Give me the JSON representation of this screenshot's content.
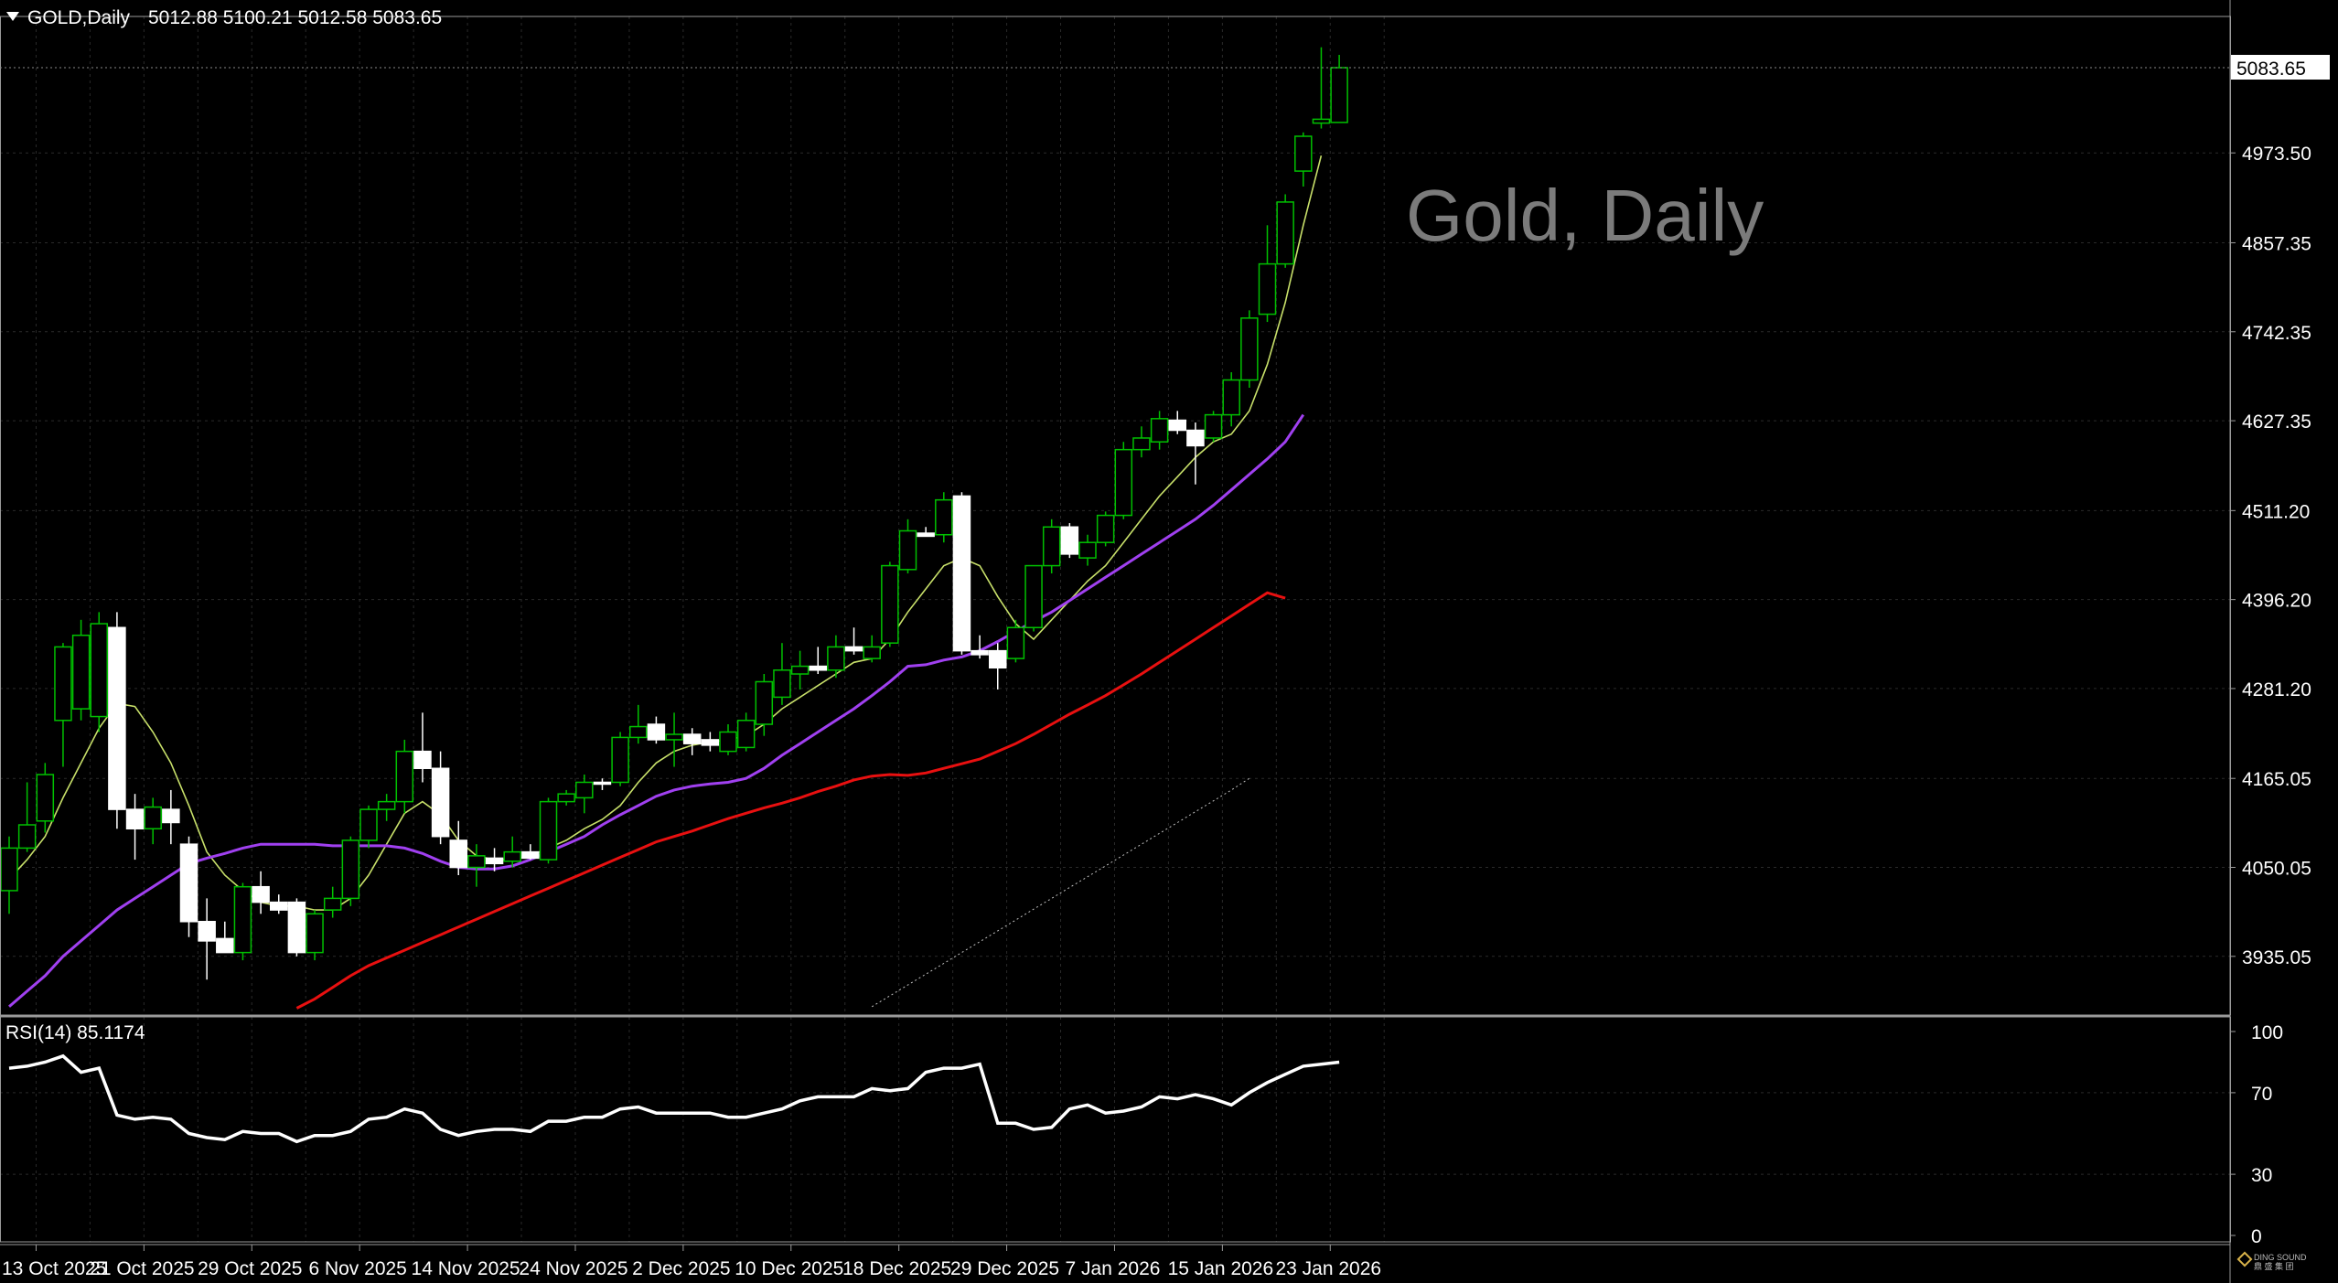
{
  "header": {
    "symbol_label": "GOLD,Daily",
    "ohlc_label": "5012.88 5100.21 5012.58 5083.65",
    "watermark_title": "Gold, Daily"
  },
  "rsi_panel": {
    "label": "RSI(14) 85.1174"
  },
  "logo": {
    "text_line1": "DING SOUND",
    "text_line2": "鼎 盛 集 团"
  },
  "colors": {
    "background": "#000000",
    "grid": "#2a2a2a",
    "bull_candle": "#00c000",
    "bear_candle": "#ffffff",
    "ma_fast": "#c8e06a",
    "ma_mid": "#a040f0",
    "ma_slow": "#e81010",
    "ma_long": "#c0c0c0",
    "rsi_line": "#ffffff"
  },
  "chart_data": [
    {
      "type": "candlestick",
      "title": "Gold, Daily",
      "xlabel": "",
      "ylabel": "",
      "ylim": [
        3870,
        5140
      ],
      "y_ticks": [
        3935.05,
        4050.05,
        4165.05,
        4281.2,
        4396.2,
        4511.2,
        4627.35,
        4742.35,
        4857.35,
        4973.5
      ],
      "y_tick_labels": [
        "3935.05",
        "4050.05",
        "4165.05",
        "4281.20",
        "4396.20",
        "4511.20",
        "4627.35",
        "4742.35",
        "4857.35",
        "4973.50"
      ],
      "current_price_label": "5083.65",
      "current_price": 5083.65,
      "x_tick_labels": [
        "13 Oct 2025",
        "21 Oct 2025",
        "29 Oct 2025",
        "6 Nov 2025",
        "14 Nov 2025",
        "24 Nov 2025",
        "2 Dec 2025",
        "10 Dec 2025",
        "18 Dec 2025",
        "29 Dec 2025",
        "7 Jan 2026",
        "15 Jan 2026",
        "23 Jan 2026"
      ],
      "x_tick_bar_index": [
        0,
        6,
        12,
        18,
        24,
        30,
        36,
        42,
        48,
        54,
        60,
        66,
        72
      ],
      "grid": true,
      "candles": [
        {
          "o": 4020,
          "h": 4090,
          "l": 3990,
          "c": 4075
        },
        {
          "o": 4075,
          "h": 4160,
          "l": 4070,
          "c": 4105
        },
        {
          "o": 4110,
          "h": 4185,
          "l": 4095,
          "c": 4170
        },
        {
          "o": 4240,
          "h": 4340,
          "l": 4180,
          "c": 4335
        },
        {
          "o": 4255,
          "h": 4370,
          "l": 4240,
          "c": 4350
        },
        {
          "o": 4245,
          "h": 4380,
          "l": 4225,
          "c": 4365
        },
        {
          "o": 4360,
          "h": 4380,
          "l": 4100,
          "c": 4125
        },
        {
          "o": 4125,
          "h": 4145,
          "l": 4060,
          "c": 4100
        },
        {
          "o": 4100,
          "h": 4140,
          "l": 4080,
          "c": 4128
        },
        {
          "o": 4125,
          "h": 4150,
          "l": 4080,
          "c": 4108
        },
        {
          "o": 4080,
          "h": 4090,
          "l": 3960,
          "c": 3980
        },
        {
          "o": 3980,
          "h": 4010,
          "l": 3905,
          "c": 3955
        },
        {
          "o": 3958,
          "h": 3980,
          "l": 3940,
          "c": 3940
        },
        {
          "o": 3940,
          "h": 4030,
          "l": 3930,
          "c": 4025
        },
        {
          "o": 4025,
          "h": 4045,
          "l": 3990,
          "c": 4005
        },
        {
          "o": 4005,
          "h": 4015,
          "l": 3990,
          "c": 3995
        },
        {
          "o": 4005,
          "h": 4010,
          "l": 3935,
          "c": 3940
        },
        {
          "o": 3940,
          "h": 3995,
          "l": 3930,
          "c": 3990
        },
        {
          "o": 3995,
          "h": 4025,
          "l": 3985,
          "c": 4010
        },
        {
          "o": 4010,
          "h": 4090,
          "l": 4000,
          "c": 4085
        },
        {
          "o": 4085,
          "h": 4130,
          "l": 4075,
          "c": 4125
        },
        {
          "o": 4125,
          "h": 4145,
          "l": 4110,
          "c": 4135
        },
        {
          "o": 4135,
          "h": 4215,
          "l": 4120,
          "c": 4200
        },
        {
          "o": 4200,
          "h": 4250,
          "l": 4160,
          "c": 4178
        },
        {
          "o": 4178,
          "h": 4200,
          "l": 4080,
          "c": 4090
        },
        {
          "o": 4085,
          "h": 4110,
          "l": 4040,
          "c": 4050
        },
        {
          "o": 4050,
          "h": 4080,
          "l": 4025,
          "c": 4065
        },
        {
          "o": 4062,
          "h": 4075,
          "l": 4045,
          "c": 4055
        },
        {
          "o": 4058,
          "h": 4090,
          "l": 4050,
          "c": 4070
        },
        {
          "o": 4070,
          "h": 4080,
          "l": 4060,
          "c": 4062
        },
        {
          "o": 4060,
          "h": 4140,
          "l": 4055,
          "c": 4135
        },
        {
          "o": 4135,
          "h": 4150,
          "l": 4130,
          "c": 4145
        },
        {
          "o": 4140,
          "h": 4170,
          "l": 4120,
          "c": 4160
        },
        {
          "o": 4160,
          "h": 4165,
          "l": 4150,
          "c": 4158
        },
        {
          "o": 4160,
          "h": 4225,
          "l": 4155,
          "c": 4218
        },
        {
          "o": 4218,
          "h": 4260,
          "l": 4210,
          "c": 4232
        },
        {
          "o": 4235,
          "h": 4245,
          "l": 4210,
          "c": 4215
        },
        {
          "o": 4215,
          "h": 4250,
          "l": 4180,
          "c": 4222
        },
        {
          "o": 4222,
          "h": 4230,
          "l": 4195,
          "c": 4210
        },
        {
          "o": 4215,
          "h": 4225,
          "l": 4200,
          "c": 4208
        },
        {
          "o": 4200,
          "h": 4235,
          "l": 4195,
          "c": 4225
        },
        {
          "o": 4205,
          "h": 4250,
          "l": 4200,
          "c": 4240
        },
        {
          "o": 4235,
          "h": 4300,
          "l": 4220,
          "c": 4290
        },
        {
          "o": 4270,
          "h": 4340,
          "l": 4260,
          "c": 4305
        },
        {
          "o": 4300,
          "h": 4330,
          "l": 4280,
          "c": 4310
        },
        {
          "o": 4310,
          "h": 4335,
          "l": 4300,
          "c": 4305
        },
        {
          "o": 4305,
          "h": 4350,
          "l": 4295,
          "c": 4335
        },
        {
          "o": 4335,
          "h": 4360,
          "l": 4325,
          "c": 4330
        },
        {
          "o": 4320,
          "h": 4350,
          "l": 4315,
          "c": 4335
        },
        {
          "o": 4340,
          "h": 4445,
          "l": 4335,
          "c": 4440
        },
        {
          "o": 4435,
          "h": 4500,
          "l": 4430,
          "c": 4485
        },
        {
          "o": 4482,
          "h": 4490,
          "l": 4478,
          "c": 4478
        },
        {
          "o": 4480,
          "h": 4535,
          "l": 4470,
          "c": 4525
        },
        {
          "o": 4530,
          "h": 4535,
          "l": 4325,
          "c": 4330
        },
        {
          "o": 4330,
          "h": 4350,
          "l": 4320,
          "c": 4325
        },
        {
          "o": 4330,
          "h": 4340,
          "l": 4280,
          "c": 4308
        },
        {
          "o": 4320,
          "h": 4370,
          "l": 4315,
          "c": 4360
        },
        {
          "o": 4360,
          "h": 4440,
          "l": 4355,
          "c": 4440
        },
        {
          "o": 4440,
          "h": 4500,
          "l": 4430,
          "c": 4490
        },
        {
          "o": 4490,
          "h": 4495,
          "l": 4450,
          "c": 4455
        },
        {
          "o": 4450,
          "h": 4480,
          "l": 4440,
          "c": 4470
        },
        {
          "o": 4470,
          "h": 4510,
          "l": 4465,
          "c": 4505
        },
        {
          "o": 4505,
          "h": 4600,
          "l": 4500,
          "c": 4590
        },
        {
          "o": 4590,
          "h": 4620,
          "l": 4580,
          "c": 4605
        },
        {
          "o": 4600,
          "h": 4640,
          "l": 4590,
          "c": 4630
        },
        {
          "o": 4628,
          "h": 4640,
          "l": 4610,
          "c": 4615
        },
        {
          "o": 4615,
          "h": 4625,
          "l": 4545,
          "c": 4595
        },
        {
          "o": 4605,
          "h": 4640,
          "l": 4600,
          "c": 4635
        },
        {
          "o": 4635,
          "h": 4690,
          "l": 4620,
          "c": 4680
        },
        {
          "o": 4680,
          "h": 4770,
          "l": 4670,
          "c": 4760
        },
        {
          "o": 4765,
          "h": 4880,
          "l": 4755,
          "c": 4830
        },
        {
          "o": 4830,
          "h": 4920,
          "l": 4825,
          "c": 4910
        },
        {
          "o": 4950,
          "h": 5000,
          "l": 4930,
          "c": 4995
        },
        {
          "o": 5012,
          "h": 5110,
          "l": 5005,
          "c": 5017
        },
        {
          "o": 5012.88,
          "h": 5100.21,
          "l": 5012.58,
          "c": 5083.65
        }
      ],
      "moving_averages": [
        {
          "style": "ma_fast",
          "values": [
            4035,
            4060,
            4090,
            4140,
            4185,
            4230,
            4262,
            4258,
            4225,
            4185,
            4130,
            4070,
            4040,
            4020,
            4005,
            4000,
            4000,
            3995,
            3995,
            4010,
            4040,
            4080,
            4120,
            4135,
            4118,
            4085,
            4065,
            4060,
            4060,
            4065,
            4075,
            4085,
            4100,
            4112,
            4130,
            4160,
            4185,
            4200,
            4208,
            4212,
            4215,
            4220,
            4235,
            4255,
            4270,
            4285,
            4300,
            4315,
            4320,
            4345,
            4380,
            4410,
            4440,
            4450,
            4440,
            4400,
            4365,
            4345,
            4370,
            4395,
            4420,
            4440,
            4470,
            4500,
            4530,
            4555,
            4580,
            4600,
            4610,
            4640,
            4700,
            4780,
            4880,
            4970
          ]
        },
        {
          "style": "ma_mid",
          "values": [
            3870,
            3890,
            3910,
            3935,
            3955,
            3975,
            3995,
            4010,
            4025,
            4040,
            4055,
            4062,
            4068,
            4075,
            4080,
            4080,
            4080,
            4080,
            4078,
            4078,
            4078,
            4078,
            4075,
            4068,
            4058,
            4050,
            4048,
            4048,
            4052,
            4060,
            4070,
            4080,
            4090,
            4105,
            4118,
            4130,
            4142,
            4150,
            4155,
            4158,
            4160,
            4165,
            4178,
            4195,
            4210,
            4225,
            4240,
            4255,
            4272,
            4290,
            4310,
            4312,
            4318,
            4322,
            4330,
            4342,
            4355,
            4368,
            4380,
            4395,
            4410,
            4425,
            4440,
            4455,
            4470,
            4485,
            4500,
            4518,
            4538,
            4558,
            4578,
            4600,
            4635
          ]
        },
        {
          "style": "ma_slow",
          "values": [
            null,
            null,
            null,
            null,
            null,
            null,
            null,
            null,
            null,
            null,
            null,
            null,
            null,
            null,
            null,
            null,
            3868,
            3880,
            3895,
            3910,
            3923,
            3933,
            3943,
            3953,
            3963,
            3973,
            3983,
            3993,
            4003,
            4013,
            4023,
            4033,
            4043,
            4053,
            4063,
            4073,
            4083,
            4090,
            4097,
            4105,
            4113,
            4120,
            4127,
            4133,
            4140,
            4148,
            4155,
            4163,
            4168,
            4170,
            4169,
            4172,
            4178,
            4184,
            4190,
            4200,
            4210,
            4222,
            4235,
            4248,
            4260,
            4272,
            4286,
            4300,
            4315,
            4330,
            4345,
            4360,
            4375,
            4390,
            4405,
            4398
          ]
        },
        {
          "style": "ma_long",
          "values": [
            null,
            null,
            null,
            null,
            null,
            null,
            null,
            null,
            null,
            null,
            null,
            null,
            null,
            null,
            null,
            null,
            null,
            null,
            null,
            null,
            null,
            null,
            null,
            null,
            null,
            null,
            null,
            null,
            null,
            null,
            null,
            null,
            null,
            null,
            null,
            null,
            null,
            null,
            null,
            null,
            null,
            null,
            null,
            null,
            null,
            null,
            null,
            null,
            3870,
            3884,
            3898,
            3912,
            3926,
            3940,
            3954,
            3968,
            3982,
            3996,
            4010,
            4024,
            4038,
            4052,
            4066,
            4080,
            4094,
            4108,
            4122,
            4136,
            4150,
            4165
          ]
        }
      ]
    },
    {
      "type": "line",
      "title": "RSI(14) 85.1174",
      "xlabel": "",
      "ylabel": "",
      "ylim": [
        0,
        100
      ],
      "y_tick_labels": [
        "100",
        "70",
        "30",
        "0"
      ],
      "y_ticks": [
        100,
        70,
        30,
        0
      ],
      "grid": true,
      "series": [
        {
          "name": "RSI(14)",
          "values": [
            82,
            83,
            85,
            88,
            80,
            82,
            59,
            57,
            58,
            57,
            50,
            48,
            47,
            51,
            50,
            50,
            46,
            49,
            49,
            51,
            57,
            58,
            62,
            60,
            52,
            49,
            51,
            52,
            52,
            51,
            56,
            56,
            58,
            58,
            62,
            63,
            60,
            60,
            60,
            60,
            58,
            58,
            60,
            62,
            66,
            68,
            68,
            68,
            72,
            71,
            72,
            80,
            82,
            82,
            84,
            55,
            55,
            52,
            53,
            62,
            64,
            60,
            61,
            63,
            68,
            67,
            69,
            67,
            64,
            70,
            75,
            79,
            83,
            84,
            85
          ]
        }
      ]
    }
  ]
}
